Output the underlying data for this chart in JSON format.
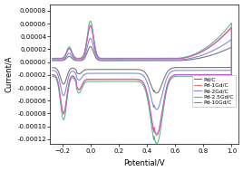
{
  "title": "",
  "xlabel": "Potential/V",
  "ylabel": "Current/A",
  "xlim": [
    -0.285,
    1.05
  ],
  "ylim": [
    -0.000128,
    9e-05
  ],
  "xticks": [
    -0.2,
    0.0,
    0.2,
    0.4,
    0.6,
    0.8,
    1.0
  ],
  "yticks": [
    -0.00012,
    -0.0001,
    -8e-05,
    -6e-05,
    -4e-05,
    -2e-05,
    0.0,
    2e-05,
    4e-05,
    6e-05,
    8e-05
  ],
  "series": [
    {
      "label": "Pd/C",
      "color": "#707070",
      "scale": 0.38
    },
    {
      "label": "Pd-1Gd/C",
      "color": "#e87878",
      "scale": 0.9
    },
    {
      "label": "Pd-2Gd/C",
      "color": "#7888cc",
      "scale": 0.58
    },
    {
      "label": "Pd-2.5Gd/C",
      "color": "#50b888",
      "scale": 1.0
    },
    {
      "label": "Pd-10Gd/C",
      "color": "#cc58cc",
      "scale": 0.88
    }
  ],
  "figsize": [
    2.68,
    1.89
  ],
  "dpi": 100
}
